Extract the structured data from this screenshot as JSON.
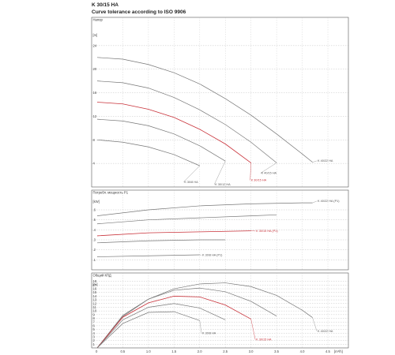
{
  "header": {
    "title": "K 30/15 HA",
    "subtitle": "Curve tolerance according to ISO 9906"
  },
  "colors": {
    "highlight": "#c9323a",
    "curve": "#777777",
    "grid": "#9a9a9a"
  },
  "chart_data": [
    {
      "type": "line",
      "panel": "head",
      "title": "Напор",
      "ylabel": "[m]",
      "xlim": [
        0,
        4.9
      ],
      "ylim": [
        0,
        28
      ],
      "yticks": [
        4,
        8,
        12,
        16,
        20,
        24
      ],
      "ytick_labels": [
        "4",
        "8",
        "12",
        "16",
        "20",
        "24"
      ],
      "grid": true,
      "series": [
        {
          "name": "K 40/22 HA",
          "highlight": false,
          "x": [
            0,
            0.5,
            1,
            1.5,
            2,
            2.5,
            3,
            3.5,
            4,
            4.2
          ],
          "y": [
            22,
            21.7,
            20.8,
            19.4,
            17.5,
            15,
            12.2,
            9,
            5.6,
            4.2
          ]
        },
        {
          "name": "K 40/15 HA",
          "highlight": false,
          "x": [
            0,
            0.5,
            1,
            1.5,
            2,
            2.5,
            3,
            3.5
          ],
          "y": [
            18,
            17.7,
            16.8,
            15.2,
            13.1,
            10.6,
            7.6,
            4.1
          ]
        },
        {
          "name": "K 30/15 HA",
          "highlight": true,
          "x": [
            0,
            0.5,
            1,
            1.5,
            2,
            2.5,
            3
          ],
          "y": [
            14.4,
            14.1,
            13.2,
            11.8,
            9.8,
            7.3,
            4.1
          ]
        },
        {
          "name": "K 30/12 HA",
          "highlight": false,
          "x": [
            0,
            0.5,
            1,
            1.5,
            2,
            2.5
          ],
          "y": [
            11.5,
            11.2,
            10.4,
            9,
            7,
            4.4
          ]
        },
        {
          "name": "K 30/8 HA",
          "highlight": false,
          "x": [
            0,
            0.5,
            1,
            1.5,
            2
          ],
          "y": [
            8,
            7.6,
            6.8,
            5.5,
            3.6
          ]
        }
      ]
    },
    {
      "type": "line",
      "panel": "power",
      "title": "Потребл. мощность P1",
      "ylabel": "[kW]",
      "xlim": [
        0,
        4.9
      ],
      "ylim": [
        0,
        0.75
      ],
      "yticks": [
        0.1,
        0.2,
        0.3,
        0.4,
        0.5,
        0.6
      ],
      "ytick_labels": [
        ".1",
        ".2",
        ".3",
        ".4",
        ".5",
        ".6"
      ],
      "grid": true,
      "series": [
        {
          "name": "K 40/22 HA (P1)",
          "highlight": false,
          "x": [
            0,
            1,
            2,
            3,
            4,
            4.2
          ],
          "y": [
            0.54,
            0.6,
            0.64,
            0.66,
            0.67,
            0.67
          ]
        },
        {
          "name": "",
          "highlight": false,
          "x": [
            0,
            1,
            2,
            3,
            3.5
          ],
          "y": [
            0.46,
            0.5,
            0.52,
            0.54,
            0.55
          ]
        },
        {
          "name": "K 30/15 HA (P1)",
          "highlight": true,
          "x": [
            0,
            1,
            2,
            3
          ],
          "y": [
            0.34,
            0.37,
            0.38,
            0.39
          ]
        },
        {
          "name": "",
          "highlight": false,
          "x": [
            0,
            1,
            2,
            2.5
          ],
          "y": [
            0.27,
            0.29,
            0.3,
            0.3
          ]
        },
        {
          "name": "K 30/8 HA (P1)",
          "highlight": false,
          "x": [
            0,
            1,
            2
          ],
          "y": [
            0.13,
            0.14,
            0.15
          ]
        }
      ]
    },
    {
      "type": "line",
      "panel": "efficiency",
      "title": "Общий КПД",
      "ylabel": "[%]",
      "xlabel": "[m³/h]",
      "xlim": [
        0,
        4.9
      ],
      "ylim": [
        0,
        19
      ],
      "yticks": [
        1,
        2,
        3,
        4,
        5,
        6,
        7,
        8,
        9,
        10,
        11,
        12,
        13,
        14,
        15,
        16,
        17,
        18
      ],
      "ytick_labels": [
        "1",
        "2",
        "3",
        "4",
        "5",
        "6",
        "7",
        "8",
        "9",
        "10",
        "11",
        "12",
        "13",
        "14",
        "15",
        "16",
        "17",
        "18"
      ],
      "xticks": [
        0.5,
        1,
        1.5,
        2,
        2.5,
        3,
        3.5,
        4,
        4.5
      ],
      "xtick_labels": [
        "0.5",
        "1.0",
        "1.5",
        "2.0",
        "2.5",
        "3.0",
        "3.5",
        "4.0",
        "4.5"
      ],
      "x_origin_label": "0",
      "grid": true,
      "series": [
        {
          "name": "K 40/22 HA",
          "highlight": false,
          "x": [
            0,
            0.5,
            1,
            1.5,
            2,
            2.5,
            3,
            3.5,
            4,
            4.2
          ],
          "y": [
            0,
            8.5,
            13.2,
            16,
            17.3,
            17.6,
            16.6,
            14.2,
            10.2,
            8.2
          ]
        },
        {
          "name": "",
          "highlight": false,
          "x": [
            0,
            0.5,
            1,
            1.5,
            2,
            2.5,
            3,
            3.5
          ],
          "y": [
            0,
            8.8,
            13.2,
            15.6,
            16.2,
            15.2,
            12.6,
            8.6
          ]
        },
        {
          "name": "K 30/15 HA",
          "highlight": true,
          "x": [
            0,
            0.5,
            1,
            1.5,
            2,
            2.5,
            3
          ],
          "y": [
            0,
            8.3,
            12.2,
            14,
            13.8,
            11.6,
            7.8
          ]
        },
        {
          "name": "",
          "highlight": false,
          "x": [
            0,
            0.5,
            1,
            1.5,
            2,
            2.5
          ],
          "y": [
            0,
            7.6,
            11,
            12,
            10.8,
            7.6
          ]
        },
        {
          "name": "K 30/8 HA",
          "highlight": false,
          "x": [
            0,
            0.5,
            1,
            1.5,
            2
          ],
          "y": [
            0,
            6.6,
            9.6,
            9.8,
            7.4
          ]
        }
      ]
    }
  ]
}
